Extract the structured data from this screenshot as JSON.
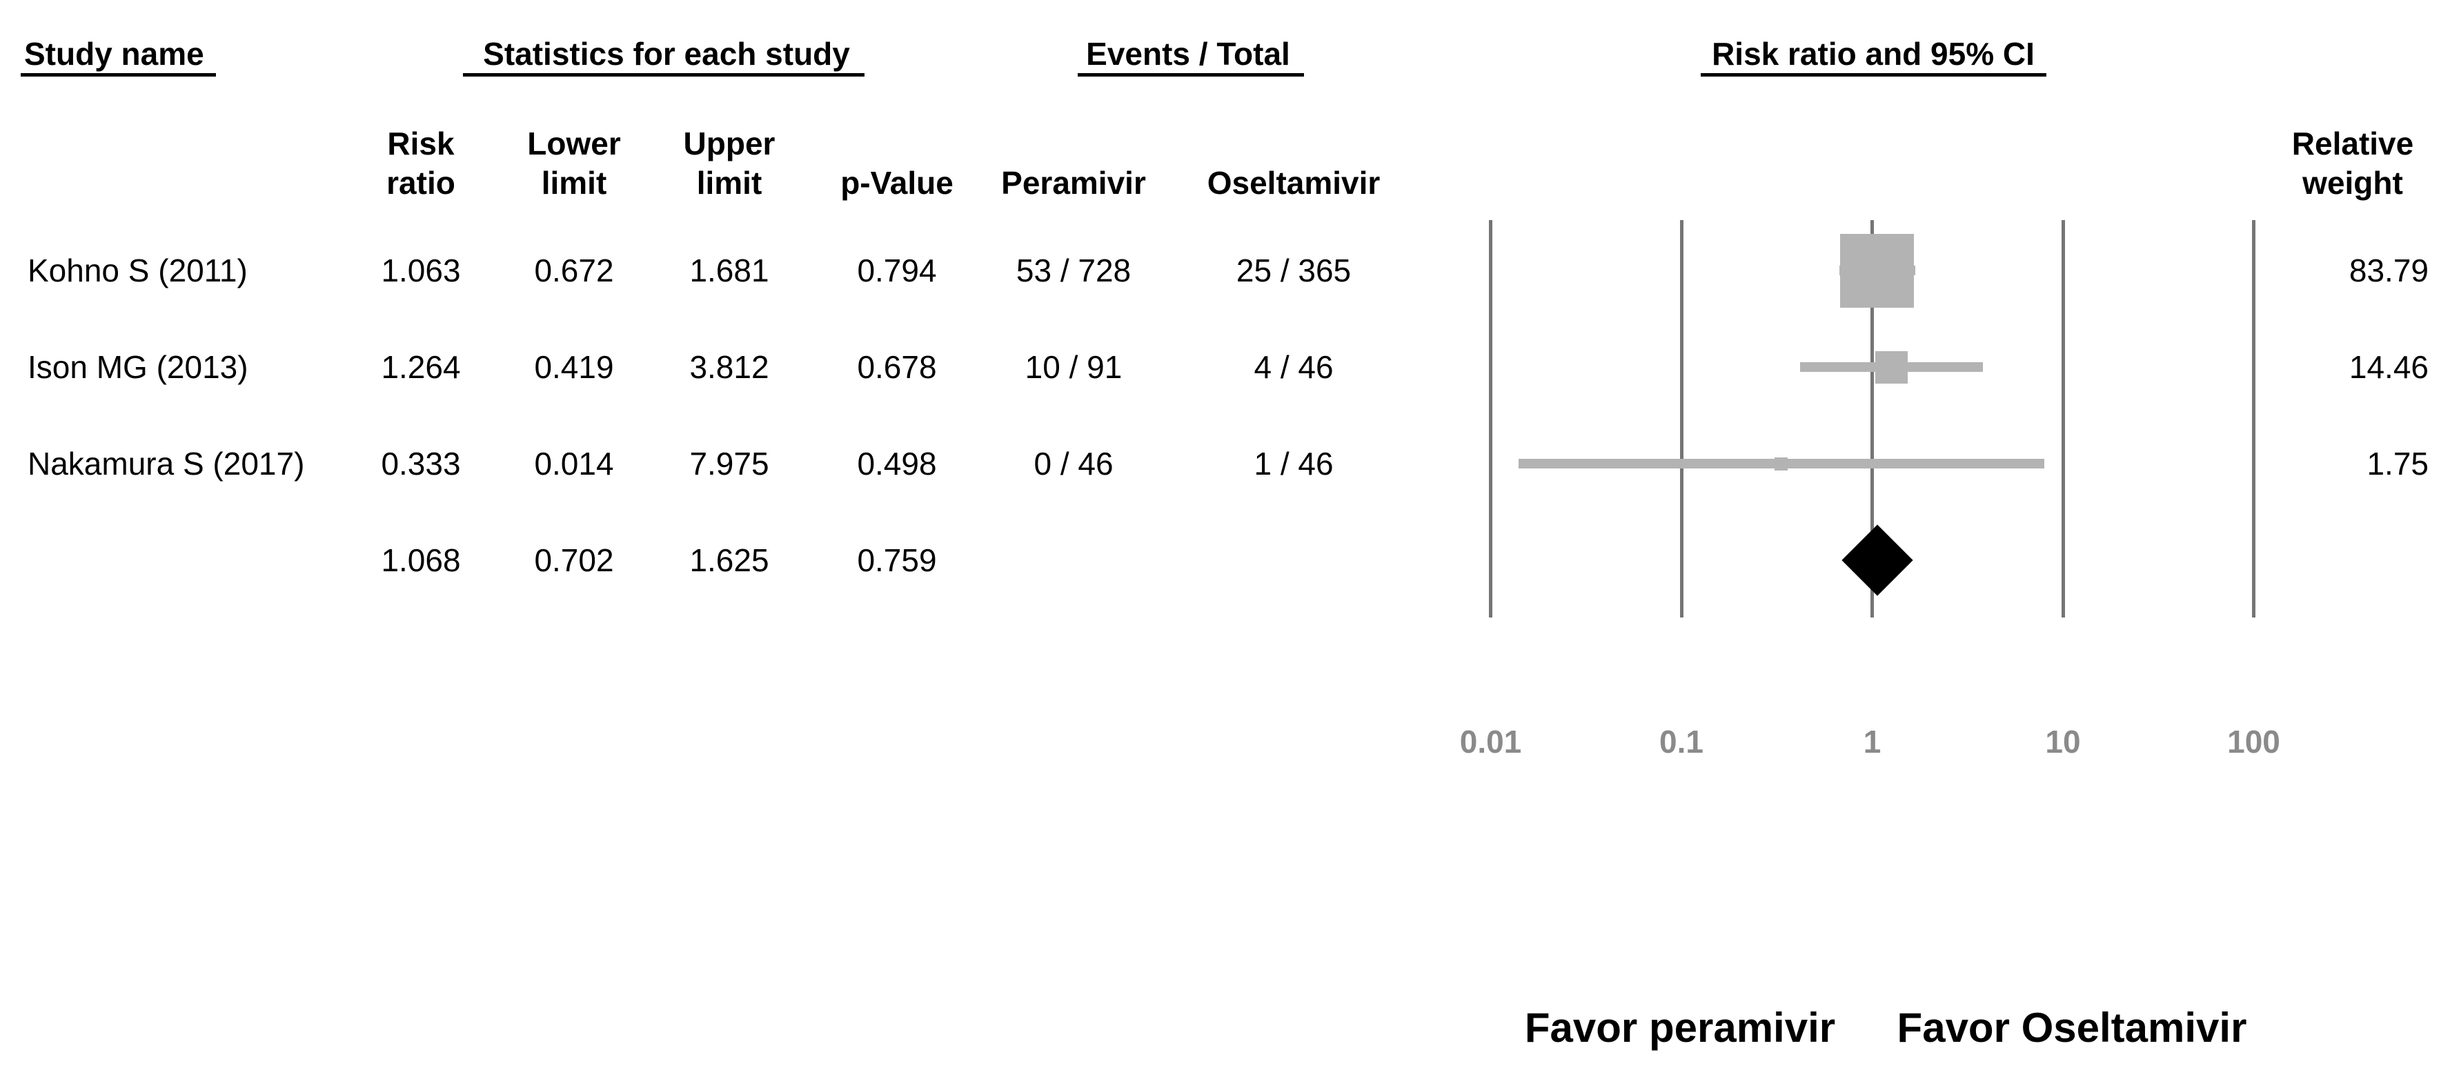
{
  "figure": {
    "group_headers": [
      {
        "label": "Study name"
      },
      {
        "label": "Statistics for each study"
      },
      {
        "label": "Events / Total"
      },
      {
        "label": "Risk ratio and 95% CI"
      }
    ],
    "sub_headers": {
      "risk_line1": "Risk",
      "risk_line2": "ratio",
      "lower_line1": "Lower",
      "lower_line2": "limit",
      "upper_line1": "Upper",
      "upper_line2": "limit",
      "p_value": "p-Value",
      "peramivir": "Peramivir",
      "oseltamivir": "Oseltamivir",
      "weight_line1": "Relative",
      "weight_line2": "weight"
    },
    "rows": [
      {
        "study": "Kohno S (2011)",
        "risk_ratio": "1.063",
        "lower_limit": "0.672",
        "upper_limit": "1.681",
        "p_value": "0.794",
        "peramivir": "53 / 728",
        "oseltamivir": "25 / 365",
        "relative_weight": "83.79"
      },
      {
        "study": "Ison MG (2013)",
        "risk_ratio": "1.264",
        "lower_limit": "0.419",
        "upper_limit": "3.812",
        "p_value": "0.678",
        "peramivir": "10 / 91",
        "oseltamivir": "4 / 46",
        "relative_weight": "14.46"
      },
      {
        "study": "Nakamura S (2017)",
        "risk_ratio": "0.333",
        "lower_limit": "0.014",
        "upper_limit": "7.975",
        "p_value": "0.498",
        "peramivir": "0 / 46",
        "oseltamivir": "1 / 46",
        "relative_weight": "1.75"
      }
    ],
    "summary_row": {
      "study": "",
      "risk_ratio": "1.068",
      "lower_limit": "0.702",
      "upper_limit": "1.625",
      "p_value": "0.759",
      "peramivir": "",
      "oseltamivir": "",
      "relative_weight": ""
    },
    "axis_ticks": [
      "0.01",
      "0.1",
      "1",
      "10",
      "100"
    ],
    "footer": {
      "left": "Favor peramivir",
      "right": "Favor Oseltamivir"
    },
    "colors": {
      "marker_gray": "#b3b3b3",
      "gridline_gray": "#757575",
      "axis_label_gray": "#8a8a8a",
      "diamond_black": "#000000",
      "text_black": "#000000"
    }
  },
  "chart_data": {
    "type": "forest",
    "x_scale": "log10",
    "xlim": [
      0.01,
      100
    ],
    "x_ticks": [
      0.01,
      0.1,
      1,
      10,
      100
    ],
    "effect_measure": "Risk ratio and 95% CI",
    "grid": "vertical-lines-at-ticks",
    "studies": [
      {
        "name": "Kohno S (2011)",
        "rr": 1.063,
        "ci_low": 0.672,
        "ci_high": 1.681,
        "p_value": 0.794,
        "events_peramivir": "53/728",
        "events_oseltamivir": "25/365",
        "weight_pct": 83.79
      },
      {
        "name": "Ison MG (2013)",
        "rr": 1.264,
        "ci_low": 0.419,
        "ci_high": 3.812,
        "p_value": 0.678,
        "events_peramivir": "10/91",
        "events_oseltamivir": "4/46",
        "weight_pct": 14.46
      },
      {
        "name": "Nakamura S (2017)",
        "rr": 0.333,
        "ci_low": 0.014,
        "ci_high": 7.975,
        "p_value": 0.498,
        "events_peramivir": "0/46",
        "events_oseltamivir": "1/46",
        "weight_pct": 1.75
      }
    ],
    "summary": {
      "rr": 1.068,
      "ci_low": 0.702,
      "ci_high": 1.625,
      "p_value": 0.759,
      "marker": "black-diamond"
    },
    "favor_labels": {
      "left": "Favor peramivir",
      "right": "Favor Oseltamivir"
    }
  }
}
